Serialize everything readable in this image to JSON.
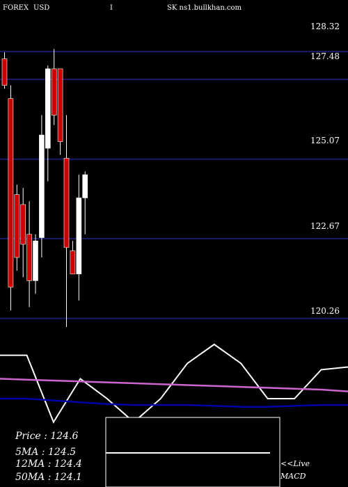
{
  "header": {
    "symbol": "FOREX",
    "pair": "USD",
    "interval": "I",
    "site": "SK ns1.bullkhan.com"
  },
  "colors": {
    "background": "#000000",
    "grid": "#1a1a66",
    "bull": "#ffffff",
    "bear": "#cc0000",
    "price_line": "#ffffff",
    "ma_line": "#cc66cc",
    "signal_line": "#0000aa"
  },
  "chart_data": [
    {
      "type": "candlestick",
      "ylim": [
        120.0,
        129.5
      ],
      "levels": [
        "128.32",
        "127.48",
        "125.07",
        "122.67",
        "120.26"
      ],
      "candles": [
        {
          "o": 128.1,
          "h": 128.3,
          "l": 127.2,
          "c": 127.3
        },
        {
          "o": 126.9,
          "h": 127.3,
          "l": 120.5,
          "c": 121.2
        },
        {
          "o": 124.0,
          "h": 124.3,
          "l": 121.7,
          "c": 122.1
        },
        {
          "o": 123.7,
          "h": 124.2,
          "l": 121.5,
          "c": 122.5
        },
        {
          "o": 122.8,
          "h": 123.8,
          "l": 120.6,
          "c": 121.4
        },
        {
          "o": 121.4,
          "h": 122.8,
          "l": 121.0,
          "c": 122.6
        },
        {
          "o": 122.7,
          "h": 126.4,
          "l": 122.1,
          "c": 125.8
        },
        {
          "o": 125.4,
          "h": 127.9,
          "l": 124.4,
          "c": 127.8
        },
        {
          "o": 127.8,
          "h": 128.4,
          "l": 126.1,
          "c": 126.4
        },
        {
          "o": 127.8,
          "h": 127.8,
          "l": 125.2,
          "c": 125.6
        },
        {
          "o": 125.1,
          "h": 126.4,
          "l": 120.0,
          "c": 122.4
        },
        {
          "o": 122.3,
          "h": 122.6,
          "l": 121.6,
          "c": 121.6
        },
        {
          "o": 121.6,
          "h": 124.6,
          "l": 120.8,
          "c": 123.9
        },
        {
          "o": 123.9,
          "h": 124.7,
          "l": 122.8,
          "c": 124.6
        }
      ]
    },
    {
      "type": "line",
      "ylim": [
        0,
        1
      ],
      "series": [
        {
          "color": "#ffffff",
          "values": [
            0.88,
            0.88,
            0.14,
            0.62,
            0.4,
            0.14,
            0.4,
            0.79,
            1.0,
            0.79,
            0.4,
            0.4,
            0.72,
            0.75
          ]
        },
        {
          "color": "#cc66cc",
          "values": [
            0.62,
            0.61,
            0.6,
            0.59,
            0.58,
            0.57,
            0.56,
            0.55,
            0.54,
            0.53,
            0.52,
            0.51,
            0.5,
            0.48
          ]
        },
        {
          "color": "#0000aa",
          "values": [
            0.4,
            0.4,
            0.38,
            0.36,
            0.34,
            0.33,
            0.33,
            0.33,
            0.32,
            0.31,
            0.31,
            0.32,
            0.33,
            0.33
          ]
        }
      ]
    }
  ],
  "info_box": {
    "price": "Price : 124.6",
    "ma5": "5MA : 124.5",
    "ma12": "12MA : 124.4",
    "ma50": "50MA : 124.1"
  },
  "live_label": "<<Live",
  "macd_label": "MACD"
}
